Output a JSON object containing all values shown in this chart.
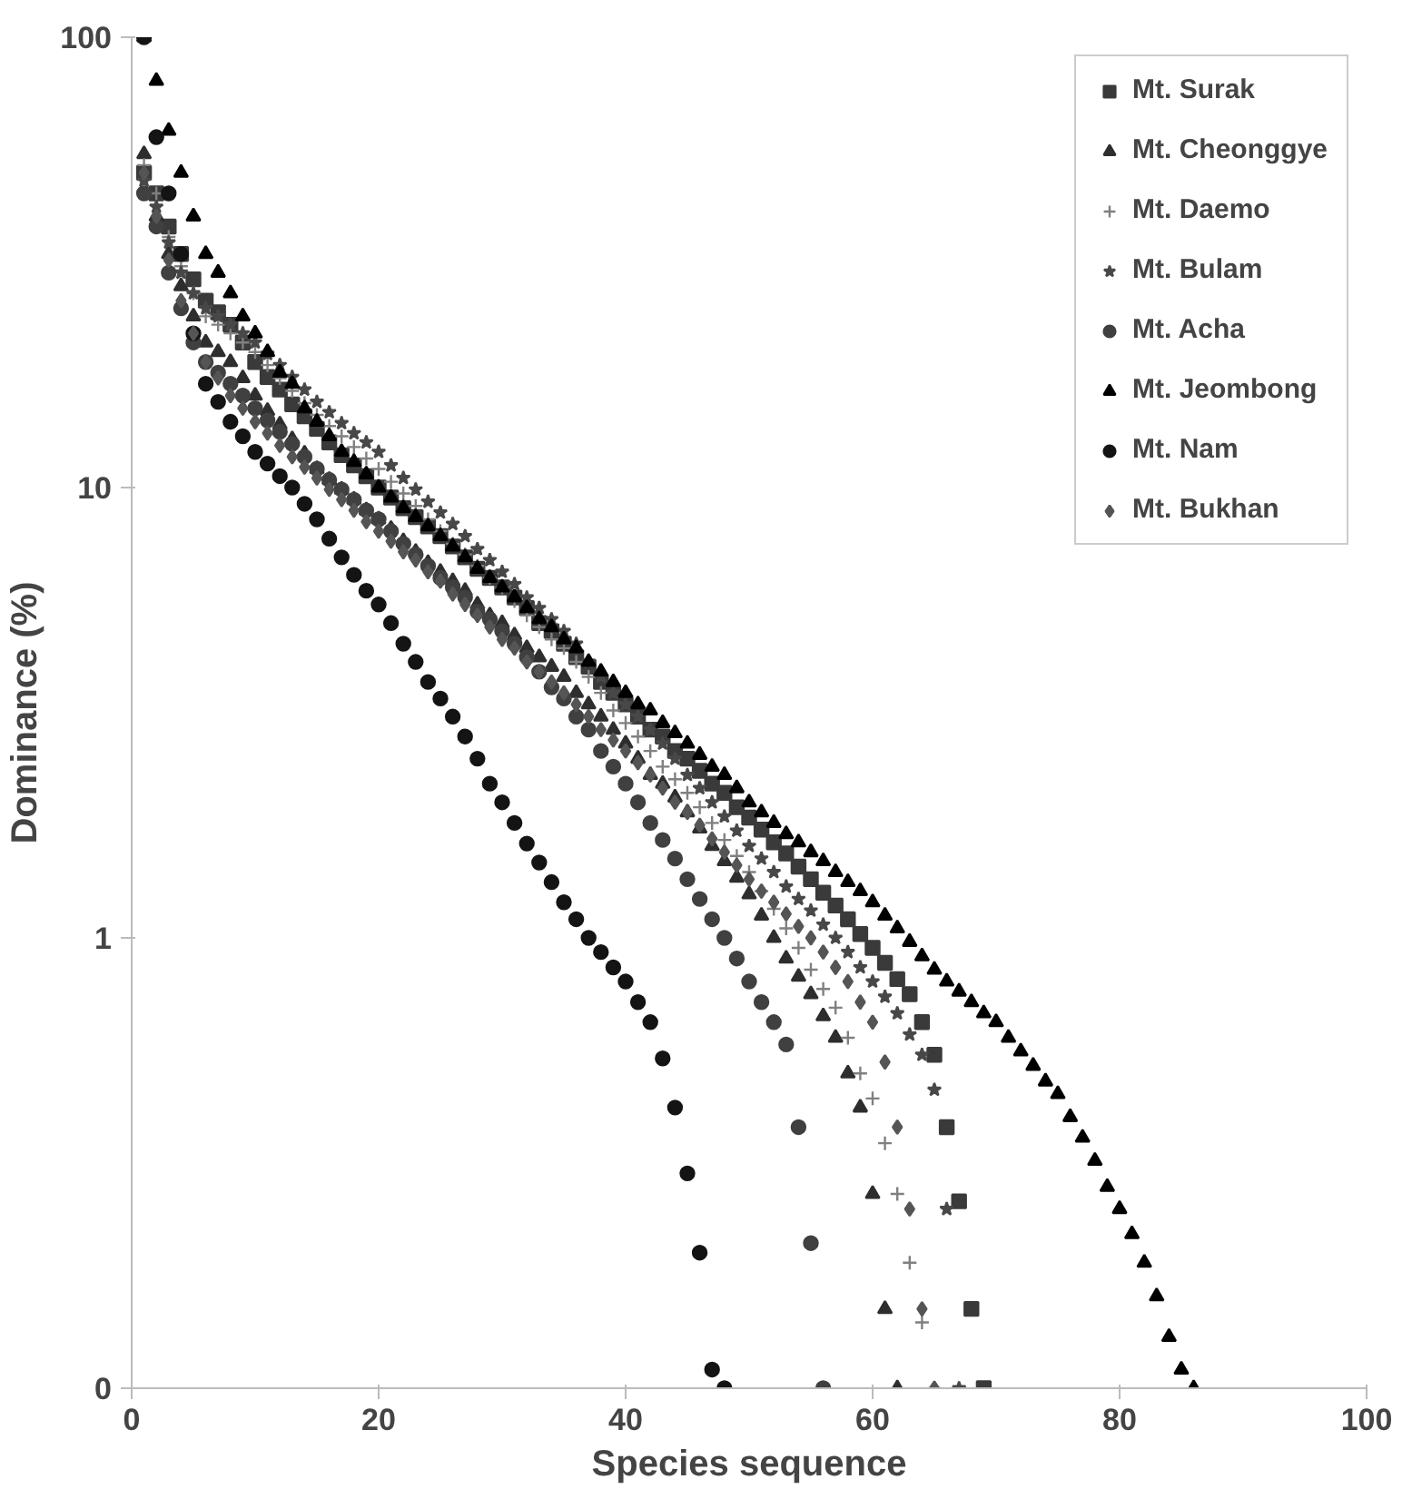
{
  "chart_data": {
    "type": "scatter",
    "xlabel": "Species sequence",
    "ylabel": "Dominance (%)",
    "log": "y",
    "xlim": [
      0,
      100
    ],
    "xticks": [
      0,
      20,
      40,
      60,
      80,
      100
    ],
    "ylim": [
      0.1,
      100
    ],
    "yticks": [
      {
        "value": 0.1,
        "label": "0"
      },
      1,
      10,
      100
    ],
    "legend": "top right",
    "series": [
      {
        "name": "Mt. Surak",
        "color": "#3a3a3a",
        "marker": "square",
        "x": [
          1,
          2,
          3,
          4,
          5,
          6,
          7,
          8,
          9,
          10,
          11,
          12,
          13,
          14,
          15,
          16,
          17,
          18,
          19,
          20,
          21,
          22,
          23,
          24,
          25,
          26,
          27,
          28,
          29,
          30,
          31,
          32,
          33,
          34,
          35,
          36,
          37,
          38,
          39,
          40,
          41,
          42,
          43,
          44,
          45,
          46,
          47,
          48,
          49,
          50,
          51,
          52,
          53,
          54,
          55,
          56,
          57,
          58,
          59,
          60,
          61,
          62,
          63,
          64,
          65,
          66,
          67,
          68,
          69
        ],
        "values": [
          50,
          45,
          38,
          33,
          29,
          26,
          24.5,
          23,
          21,
          19,
          17.6,
          16.5,
          15.3,
          14.4,
          13.5,
          12.6,
          11.8,
          11.2,
          10.6,
          10,
          9.5,
          9,
          8.6,
          8.2,
          7.8,
          7.4,
          7,
          6.6,
          6.3,
          6,
          5.7,
          5.4,
          5.0,
          4.8,
          4.5,
          4.2,
          4.0,
          3.7,
          3.5,
          3.3,
          3.1,
          2.9,
          2.8,
          2.6,
          2.5,
          2.35,
          2.2,
          2.1,
          1.95,
          1.85,
          1.74,
          1.63,
          1.54,
          1.44,
          1.35,
          1.26,
          1.18,
          1.1,
          1.02,
          0.95,
          0.88,
          0.81,
          0.75,
          0.65,
          0.55,
          0.38,
          0.26,
          0.15,
          0.1
        ]
      },
      {
        "name": "Mt. Cheonggye",
        "color": "#2e2e2e",
        "marker": "triangle",
        "x": [
          1,
          2,
          3,
          4,
          5,
          6,
          7,
          8,
          9,
          10,
          11,
          12,
          13,
          14,
          15,
          16,
          17,
          18,
          19,
          20,
          21,
          22,
          23,
          24,
          25,
          26,
          27,
          28,
          29,
          30,
          31,
          32,
          33,
          34,
          35,
          36,
          37,
          38,
          39,
          40,
          41,
          42,
          43,
          44,
          45,
          46,
          47,
          48,
          49,
          50,
          51,
          52,
          53,
          54,
          55,
          56,
          57,
          58,
          59,
          60,
          61,
          62
        ],
        "values": [
          55,
          40,
          33,
          28,
          24,
          21,
          20,
          19,
          17.5,
          16,
          14.8,
          13.8,
          12.8,
          11.9,
          11,
          10.4,
          9.9,
          9.4,
          8.9,
          8.5,
          8.1,
          7.6,
          7.2,
          6.8,
          6.5,
          6.2,
          5.9,
          5.5,
          5.2,
          5,
          4.7,
          4.4,
          4.2,
          4.0,
          3.8,
          3.5,
          3.3,
          3.1,
          2.9,
          2.7,
          2.5,
          2.3,
          2.2,
          2.05,
          1.9,
          1.75,
          1.6,
          1.48,
          1.36,
          1.25,
          1.12,
          1.0,
          0.9,
          0.82,
          0.75,
          0.67,
          0.6,
          0.5,
          0.42,
          0.27,
          0.15,
          0.1
        ]
      },
      {
        "name": "Mt. Daemo",
        "color": "#808080",
        "marker": "cross",
        "x": [
          1,
          2,
          3,
          4,
          5,
          6,
          7,
          8,
          9,
          10,
          11,
          12,
          13,
          14,
          15,
          16,
          17,
          18,
          19,
          20,
          21,
          22,
          23,
          24,
          25,
          26,
          27,
          28,
          29,
          30,
          31,
          32,
          33,
          34,
          35,
          36,
          37,
          38,
          39,
          40,
          41,
          42,
          43,
          44,
          45,
          46,
          47,
          48,
          49,
          50,
          51,
          52,
          53,
          54,
          55,
          56,
          57,
          58,
          59,
          60,
          61,
          62,
          63,
          64,
          65
        ],
        "values": [
          52,
          45,
          36,
          31,
          27,
          24,
          23,
          22,
          21,
          20,
          18.7,
          17.5,
          16.4,
          15.4,
          14.5,
          13.7,
          13,
          12.3,
          11.6,
          11,
          10.3,
          9.7,
          9.1,
          8.5,
          8,
          7.5,
          7.1,
          6.7,
          6.3,
          6,
          5.6,
          5.2,
          4.9,
          4.6,
          4.4,
          4.1,
          3.8,
          3.5,
          3.2,
          3.0,
          2.8,
          2.6,
          2.4,
          2.25,
          2.1,
          1.95,
          1.8,
          1.65,
          1.52,
          1.4,
          1.27,
          1.16,
          1.05,
          0.95,
          0.85,
          0.77,
          0.7,
          0.6,
          0.5,
          0.44,
          0.35,
          0.27,
          0.19,
          0.14,
          0.1
        ]
      },
      {
        "name": "Mt. Bulam",
        "color": "#484848",
        "marker": "star",
        "x": [
          1,
          2,
          3,
          4,
          5,
          6,
          7,
          8,
          9,
          10,
          11,
          12,
          13,
          14,
          15,
          16,
          17,
          18,
          19,
          20,
          21,
          22,
          23,
          24,
          25,
          26,
          27,
          28,
          29,
          30,
          31,
          32,
          33,
          34,
          35,
          36,
          37,
          38,
          39,
          40,
          41,
          42,
          43,
          44,
          45,
          46,
          47,
          48,
          49,
          50,
          51,
          52,
          53,
          54,
          55,
          56,
          57,
          58,
          59,
          60,
          61,
          62,
          63,
          64,
          65,
          66,
          67
        ],
        "values": [
          48,
          42,
          35,
          30,
          27,
          25,
          24,
          23,
          22,
          21,
          19.8,
          18.7,
          17.6,
          16.5,
          15.5,
          14.7,
          13.9,
          13.2,
          12.6,
          12,
          11.2,
          10.5,
          9.9,
          9.3,
          8.8,
          8.3,
          7.8,
          7.3,
          6.9,
          6.5,
          6.1,
          5.7,
          5.4,
          5.1,
          4.8,
          4.5,
          4.1,
          3.8,
          3.5,
          3.3,
          3.1,
          2.9,
          2.7,
          2.5,
          2.3,
          2.15,
          2.0,
          1.86,
          1.73,
          1.6,
          1.5,
          1.4,
          1.3,
          1.22,
          1.15,
          1.07,
          1.0,
          0.93,
          0.86,
          0.8,
          0.74,
          0.68,
          0.61,
          0.55,
          0.46,
          0.25,
          0.1
        ]
      },
      {
        "name": "Mt. Acha",
        "color": "#404040",
        "marker": "circle",
        "x": [
          1,
          2,
          3,
          4,
          5,
          6,
          7,
          8,
          9,
          10,
          11,
          12,
          13,
          14,
          15,
          16,
          17,
          18,
          19,
          20,
          21,
          22,
          23,
          24,
          25,
          26,
          27,
          28,
          29,
          30,
          31,
          32,
          33,
          34,
          35,
          36,
          37,
          38,
          39,
          40,
          41,
          42,
          43,
          44,
          45,
          46,
          47,
          48,
          49,
          50,
          51,
          52,
          53,
          54,
          55,
          56
        ],
        "values": [
          45,
          38,
          30,
          25,
          21,
          19,
          18,
          17,
          16,
          15,
          14.1,
          13.3,
          12.5,
          11.7,
          11,
          10.4,
          9.9,
          9.4,
          8.9,
          8.5,
          8,
          7.5,
          7.1,
          6.7,
          6.3,
          6,
          5.7,
          5.3,
          5.1,
          4.8,
          4.5,
          4.2,
          3.9,
          3.6,
          3.4,
          3.1,
          2.9,
          2.6,
          2.4,
          2.2,
          2.0,
          1.8,
          1.65,
          1.5,
          1.35,
          1.22,
          1.1,
          1.0,
          0.9,
          0.8,
          0.72,
          0.65,
          0.58,
          0.38,
          0.21,
          0.1
        ]
      },
      {
        "name": "Mt. Jeombong",
        "color": "#000000",
        "marker": "triangle",
        "x": [
          1,
          2,
          3,
          4,
          5,
          6,
          7,
          8,
          9,
          10,
          11,
          12,
          13,
          14,
          15,
          16,
          17,
          18,
          19,
          20,
          21,
          22,
          23,
          24,
          25,
          26,
          27,
          28,
          29,
          30,
          31,
          32,
          33,
          34,
          35,
          36,
          37,
          38,
          39,
          40,
          41,
          42,
          43,
          44,
          45,
          46,
          47,
          48,
          49,
          50,
          51,
          52,
          53,
          54,
          55,
          56,
          57,
          58,
          59,
          60,
          61,
          62,
          63,
          64,
          65,
          66,
          67,
          68,
          69,
          70,
          71,
          72,
          73,
          74,
          75,
          76,
          77,
          78,
          79,
          80,
          81,
          82,
          83,
          84,
          85,
          86
        ],
        "values": [
          100,
          80,
          62,
          50,
          40,
          33,
          30,
          27,
          24,
          22,
          20,
          18,
          17,
          15,
          14,
          13,
          12,
          11.4,
          10.7,
          10,
          9.5,
          9,
          8.6,
          8.2,
          7.8,
          7.4,
          7,
          6.6,
          6.3,
          6,
          5.7,
          5.4,
          5.1,
          4.9,
          4.6,
          4.4,
          4.1,
          3.9,
          3.7,
          3.5,
          3.3,
          3.2,
          3.0,
          2.85,
          2.7,
          2.55,
          2.4,
          2.3,
          2.15,
          2.0,
          1.9,
          1.8,
          1.7,
          1.63,
          1.55,
          1.48,
          1.4,
          1.33,
          1.27,
          1.2,
          1.12,
          1.05,
          0.98,
          0.91,
          0.85,
          0.8,
          0.76,
          0.72,
          0.68,
          0.65,
          0.6,
          0.56,
          0.52,
          0.48,
          0.45,
          0.4,
          0.36,
          0.32,
          0.28,
          0.25,
          0.22,
          0.19,
          0.16,
          0.13,
          0.11,
          0.1
        ]
      },
      {
        "name": "Mt. Nam",
        "color": "#141414",
        "marker": "circle",
        "x": [
          1,
          2,
          3,
          4,
          5,
          6,
          7,
          8,
          9,
          10,
          11,
          12,
          13,
          14,
          15,
          16,
          17,
          18,
          19,
          20,
          21,
          22,
          23,
          24,
          25,
          26,
          27,
          28,
          29,
          30,
          31,
          32,
          33,
          34,
          35,
          36,
          37,
          38,
          39,
          40,
          41,
          42,
          43,
          44,
          45,
          46,
          47,
          48
        ],
        "values": [
          100,
          60,
          45,
          33,
          22,
          17,
          15.5,
          14,
          13,
          12,
          11.3,
          10.6,
          10,
          9.2,
          8.5,
          7.7,
          7.0,
          6.4,
          5.9,
          5.5,
          5.0,
          4.5,
          4.1,
          3.7,
          3.4,
          3.1,
          2.8,
          2.5,
          2.2,
          2.0,
          1.8,
          1.62,
          1.47,
          1.33,
          1.2,
          1.1,
          1.0,
          0.93,
          0.86,
          0.8,
          0.72,
          0.65,
          0.54,
          0.42,
          0.3,
          0.2,
          0.11,
          0.1
        ]
      },
      {
        "name": "Mt. Bukhan",
        "color": "#555555",
        "marker": "diamond",
        "x": [
          1,
          2,
          3,
          4,
          5,
          6,
          7,
          8,
          9,
          10,
          11,
          12,
          13,
          14,
          15,
          16,
          17,
          18,
          19,
          20,
          21,
          22,
          23,
          24,
          25,
          26,
          27,
          28,
          29,
          30,
          31,
          32,
          33,
          34,
          35,
          36,
          37,
          38,
          39,
          40,
          41,
          42,
          43,
          44,
          45,
          46,
          47,
          48,
          49,
          50,
          51,
          52,
          53,
          54,
          55,
          56,
          57,
          58,
          59,
          60,
          61,
          62,
          63,
          64,
          65
        ],
        "values": [
          50,
          40,
          32,
          26,
          22,
          19,
          17.5,
          16,
          15,
          14,
          13.2,
          12.4,
          11.7,
          11.1,
          10.5,
          9.9,
          9.4,
          8.9,
          8.4,
          8,
          7.6,
          7.2,
          6.9,
          6.5,
          6.2,
          5.8,
          5.5,
          5.2,
          4.9,
          4.6,
          4.4,
          4.1,
          3.9,
          3.7,
          3.5,
          3.3,
          3.1,
          2.9,
          2.75,
          2.6,
          2.45,
          2.3,
          2.15,
          2.0,
          1.9,
          1.78,
          1.66,
          1.55,
          1.45,
          1.35,
          1.27,
          1.2,
          1.13,
          1.06,
          1.0,
          0.93,
          0.86,
          0.8,
          0.72,
          0.65,
          0.53,
          0.38,
          0.25,
          0.15,
          0.1
        ]
      }
    ]
  }
}
